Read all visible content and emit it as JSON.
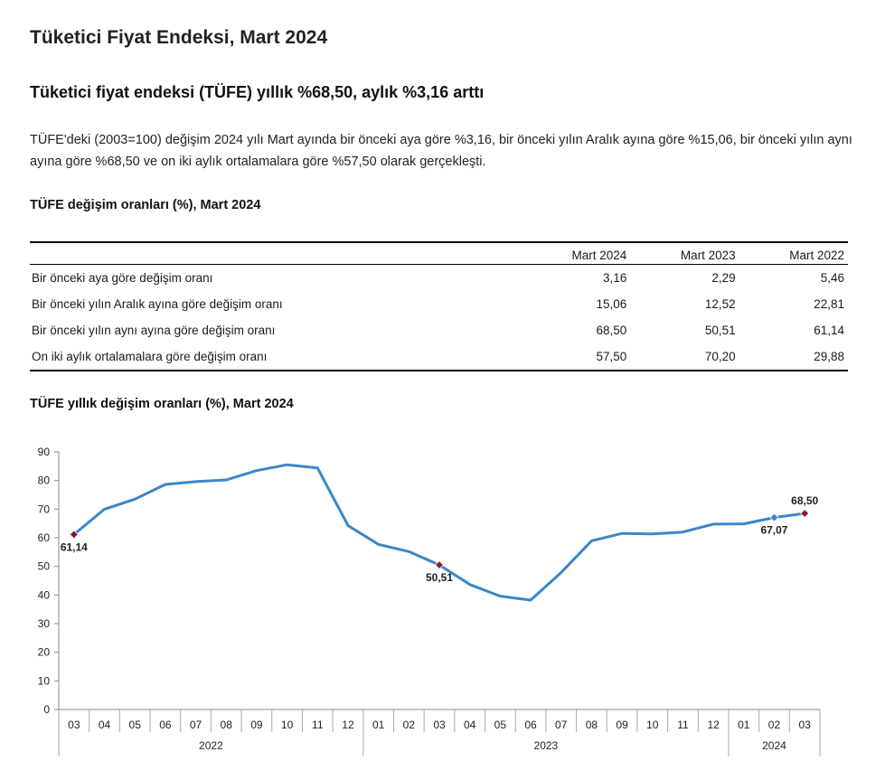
{
  "page": {
    "title": "Tüketici Fiyat Endeksi, Mart 2024",
    "headline": "Tüketici fiyat endeksi (TÜFE) yıllık %68,50, aylık %3,16 arttı",
    "summary": "TÜFE'deki (2003=100) değişim 2024 yılı Mart ayında bir önceki aya göre %3,16, bir önceki yılın Aralık ayına göre %15,06, bir önceki yılın aynı ayına göre %68,50 ve on iki aylık ortalamalara göre %57,50 olarak gerçekleşti."
  },
  "table": {
    "title": "TÜFE değişim oranları (%), Mart 2024",
    "columns": [
      "Mart 2024",
      "Mart 2023",
      "Mart 2022"
    ],
    "rows": [
      {
        "label": "Bir önceki aya göre değişim oranı",
        "values": [
          "3,16",
          "2,29",
          "5,46"
        ]
      },
      {
        "label": "Bir önceki yılın Aralık ayına göre değişim oranı",
        "values": [
          "15,06",
          "12,52",
          "22,81"
        ]
      },
      {
        "label": "Bir önceki yılın aynı ayına göre değişim oranı",
        "values": [
          "68,50",
          "50,51",
          "61,14"
        ]
      },
      {
        "label": "On iki aylık ortalamalara göre değişim oranı",
        "values": [
          "57,50",
          "70,20",
          "29,88"
        ]
      }
    ]
  },
  "chart_data": {
    "type": "line",
    "title": "TÜFE yıllık değişim oranları (%), Mart 2024",
    "xlabel": "",
    "ylabel": "",
    "ylim": [
      0,
      90
    ],
    "yticks": [
      0,
      10,
      20,
      30,
      40,
      50,
      60,
      70,
      80,
      90
    ],
    "grid": false,
    "line_color": "#3a87c8",
    "marker_color": "#8b1a2e",
    "marker_color_alt": "#3a87c8",
    "x": [
      "03",
      "04",
      "05",
      "06",
      "07",
      "08",
      "09",
      "10",
      "11",
      "12",
      "01",
      "02",
      "03",
      "04",
      "05",
      "06",
      "07",
      "08",
      "09",
      "10",
      "11",
      "12",
      "01",
      "02",
      "03"
    ],
    "year_groups": [
      {
        "label": "2022",
        "count": 10
      },
      {
        "label": "2023",
        "count": 12
      },
      {
        "label": "2024",
        "count": 3
      }
    ],
    "series": [
      {
        "values": [
          61.14,
          69.97,
          73.5,
          78.62,
          79.6,
          80.21,
          83.45,
          85.51,
          84.39,
          64.27,
          57.68,
          55.18,
          50.51,
          43.68,
          39.59,
          38.21,
          47.83,
          58.94,
          61.53,
          61.36,
          61.98,
          64.77,
          64.86,
          67.07,
          68.5
        ]
      }
    ],
    "annotations": [
      {
        "index": 0,
        "label": "61,14",
        "position": "below",
        "marker": "primary"
      },
      {
        "index": 12,
        "label": "50,51",
        "position": "below",
        "marker": "primary"
      },
      {
        "index": 23,
        "label": "67,07",
        "position": "below",
        "marker": "alt"
      },
      {
        "index": 24,
        "label": "68,50",
        "position": "above",
        "marker": "primary"
      }
    ]
  }
}
